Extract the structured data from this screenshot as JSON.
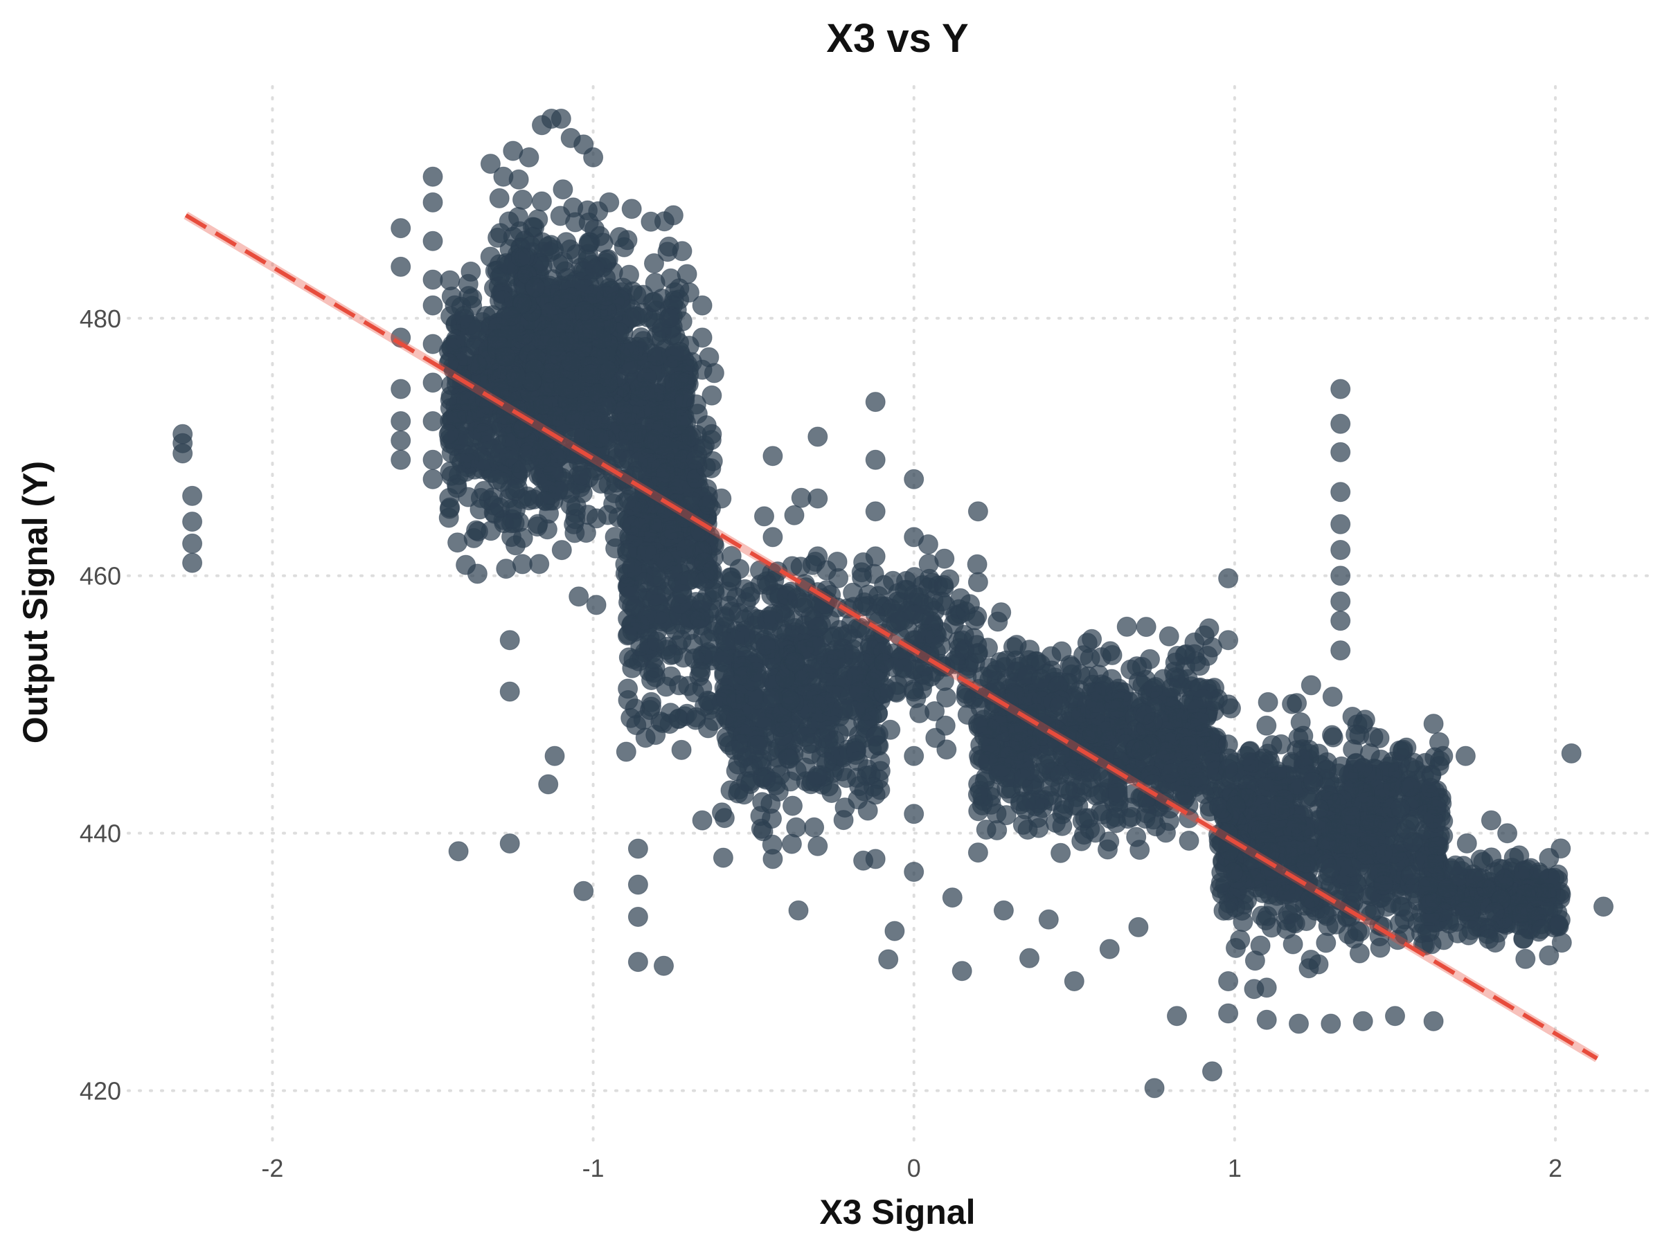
{
  "chart_data": {
    "type": "scatter",
    "title": "X3 vs Y",
    "xlabel": "X3 Signal",
    "ylabel": "Output Signal (Y)",
    "xlim": [
      -2.45,
      2.3
    ],
    "ylim": [
      416,
      498
    ],
    "x_ticks": [
      -2,
      -1,
      0,
      1,
      2
    ],
    "x_tick_labels": [
      "-2",
      "-1",
      "0",
      "1",
      "2"
    ],
    "y_ticks": [
      420,
      440,
      460,
      480
    ],
    "y_tick_labels": [
      "420",
      "440",
      "460",
      "480"
    ],
    "grid": "major, dotted",
    "point_color": "#2c3e50",
    "trend_color": "#e74c3c",
    "trend_line": {
      "style": "dashed",
      "x": [
        -2.27,
        2.13
      ],
      "y": [
        488.0,
        422.5
      ]
    },
    "series": [
      {
        "points": [
          [
            -2.28,
            471.0
          ],
          [
            -2.28,
            470.3
          ],
          [
            -2.28,
            469.5
          ],
          [
            -2.25,
            466.2
          ],
          [
            -2.25,
            464.2
          ],
          [
            -2.25,
            462.5
          ],
          [
            -2.25,
            461.0
          ],
          [
            -1.6,
            487.0
          ],
          [
            -1.6,
            484.0
          ],
          [
            -1.6,
            478.5
          ],
          [
            -1.6,
            474.5
          ],
          [
            -1.6,
            472.0
          ],
          [
            -1.6,
            470.5
          ],
          [
            -1.6,
            469.0
          ],
          [
            -1.5,
            491.0
          ],
          [
            -1.5,
            489.0
          ],
          [
            -1.5,
            486.0
          ],
          [
            -1.5,
            483.0
          ],
          [
            -1.5,
            481.0
          ],
          [
            -1.5,
            478.0
          ],
          [
            -1.5,
            475.0
          ],
          [
            -1.5,
            472.0
          ],
          [
            -1.5,
            469.0
          ],
          [
            -1.5,
            467.5
          ],
          [
            -1.45,
            476.5
          ],
          [
            -1.45,
            471.0
          ],
          [
            -1.45,
            464.5
          ],
          [
            -1.42,
            438.6
          ],
          [
            -1.26,
            439.2
          ],
          [
            -1.03,
            435.5
          ],
          [
            -0.86,
            430.0
          ],
          [
            -0.78,
            429.7
          ],
          [
            -1.12,
            446.0
          ],
          [
            -1.14,
            443.8
          ],
          [
            -1.26,
            451.0
          ],
          [
            -1.26,
            455.0
          ],
          [
            -0.86,
            436.0
          ],
          [
            -0.86,
            433.5
          ],
          [
            -0.86,
            438.8
          ],
          [
            -0.66,
            441.0
          ],
          [
            -0.36,
            434.0
          ],
          [
            -0.08,
            430.2
          ],
          [
            -0.06,
            432.4
          ],
          [
            0.15,
            429.3
          ],
          [
            0.12,
            435.0
          ],
          [
            0.5,
            428.5
          ],
          [
            0.75,
            420.2
          ],
          [
            0.93,
            421.5
          ],
          [
            0.82,
            425.8
          ],
          [
            0.42,
            433.3
          ],
          [
            0.36,
            430.3
          ],
          [
            0.28,
            434.0
          ],
          [
            0.61,
            431.0
          ],
          [
            0.7,
            432.7
          ],
          [
            1.33,
            474.5
          ],
          [
            1.33,
            471.8
          ],
          [
            1.33,
            469.6
          ],
          [
            1.33,
            466.5
          ],
          [
            1.33,
            464.0
          ],
          [
            1.33,
            462.0
          ],
          [
            1.33,
            460.0
          ],
          [
            1.33,
            458.0
          ],
          [
            1.33,
            456.5
          ],
          [
            1.33,
            454.2
          ],
          [
            1.95,
            436.8
          ],
          [
            2.05,
            446.2
          ],
          [
            2.15,
            434.3
          ],
          [
            1.98,
            430.5
          ],
          [
            1.9,
            431.8
          ],
          [
            1.85,
            440.0
          ],
          [
            -0.12,
            473.5
          ],
          [
            -0.12,
            469.0
          ],
          [
            -0.12,
            465.0
          ],
          [
            -0.12,
            461.5
          ],
          [
            -0.12,
            457.0
          ],
          [
            -0.12,
            452.0
          ],
          [
            -0.12,
            447.5
          ],
          [
            -0.12,
            443.0
          ],
          [
            -0.12,
            438.0
          ],
          [
            0.0,
            467.5
          ],
          [
            0.0,
            463.0
          ],
          [
            0.0,
            458.5
          ],
          [
            0.0,
            455.0
          ],
          [
            0.0,
            451.0
          ],
          [
            0.0,
            446.0
          ],
          [
            0.0,
            441.5
          ],
          [
            0.0,
            437.0
          ],
          [
            -0.3,
            470.8
          ],
          [
            -0.3,
            466.0
          ],
          [
            -0.3,
            461.5
          ],
          [
            -0.3,
            456.0
          ],
          [
            -0.3,
            450.0
          ],
          [
            -0.3,
            444.5
          ],
          [
            -0.3,
            439.0
          ],
          [
            -0.44,
            469.3
          ],
          [
            -0.44,
            463.0
          ],
          [
            -0.44,
            457.0
          ],
          [
            -0.44,
            450.5
          ],
          [
            -0.44,
            444.0
          ],
          [
            -0.44,
            438.0
          ],
          [
            0.2,
            465.0
          ],
          [
            0.2,
            459.5
          ],
          [
            0.2,
            454.0
          ],
          [
            0.2,
            448.5
          ],
          [
            0.2,
            443.0
          ],
          [
            0.2,
            438.5
          ],
          [
            0.98,
            459.8
          ],
          [
            0.98,
            455.0
          ],
          [
            0.98,
            450.0
          ],
          [
            0.98,
            445.0
          ],
          [
            0.98,
            440.0
          ],
          [
            0.98,
            434.0
          ],
          [
            0.98,
            428.5
          ],
          [
            0.98,
            426.0
          ],
          [
            1.1,
            428.0
          ],
          [
            1.1,
            425.5
          ],
          [
            1.2,
            425.2
          ],
          [
            1.3,
            425.2
          ],
          [
            1.4,
            425.4
          ],
          [
            1.5,
            425.8
          ],
          [
            1.62,
            425.4
          ],
          [
            1.62,
            448.5
          ],
          [
            1.65,
            446.0
          ],
          [
            1.72,
            446.0
          ],
          [
            1.8,
            441.0
          ],
          [
            1.75,
            436.5
          ],
          [
            2.02,
            431.5
          ],
          [
            -1.32,
            492.0
          ],
          [
            -1.28,
            491.0
          ],
          [
            -1.25,
            493.0
          ],
          [
            -1.2,
            492.5
          ],
          [
            -1.16,
            495.0
          ],
          [
            -1.13,
            495.5
          ],
          [
            -1.1,
            495.5
          ],
          [
            -1.07,
            494.0
          ],
          [
            -1.03,
            493.5
          ],
          [
            -1.0,
            492.5
          ],
          [
            -0.95,
            489.0
          ],
          [
            -0.88,
            488.5
          ],
          [
            -0.82,
            487.5
          ],
          [
            -0.75,
            488.0
          ],
          [
            -0.7,
            482.0
          ],
          [
            -0.66,
            481.0
          ],
          [
            -0.66,
            476.0
          ],
          [
            -0.66,
            478.5
          ],
          [
            -0.63,
            474.0
          ],
          [
            -0.63,
            471.0
          ],
          [
            -0.68,
            469.0
          ],
          [
            -0.6,
            466.0
          ]
        ]
      }
    ]
  }
}
